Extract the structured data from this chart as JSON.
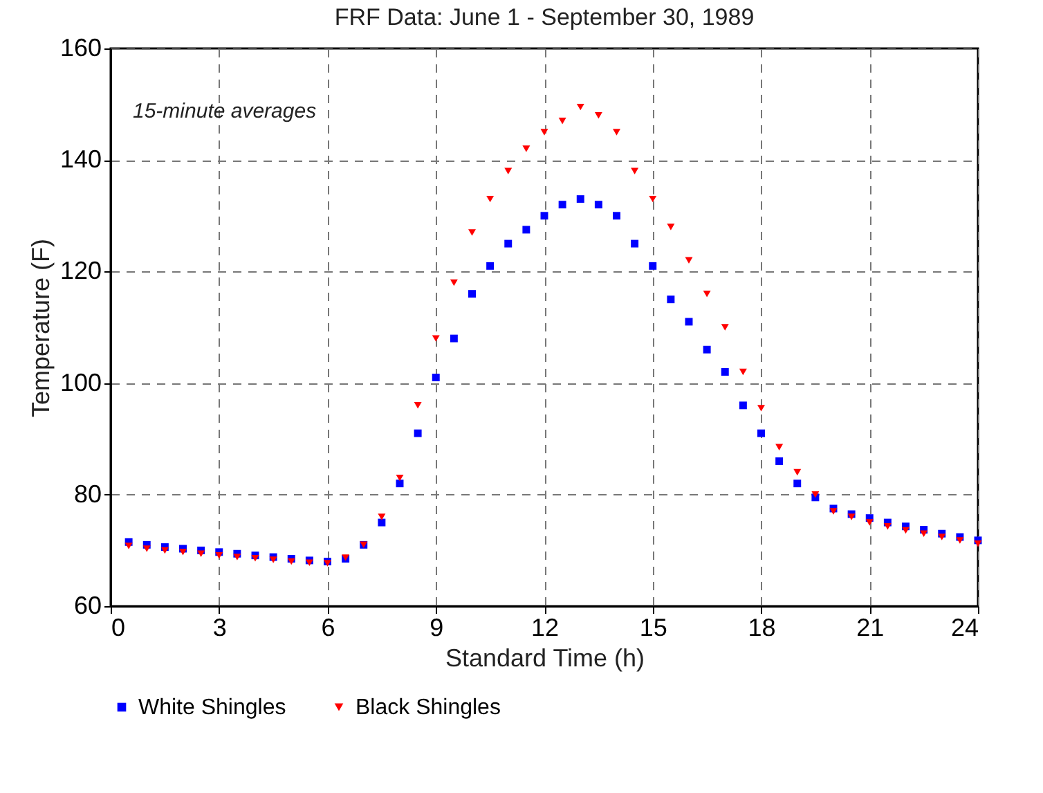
{
  "chart_data": {
    "type": "scatter",
    "title": "FRF Data: June 1 - September 30, 1989",
    "xlabel": "Standard Time (h)",
    "ylabel": "Temperature (F)",
    "annotations": [
      "15-minute averages"
    ],
    "xlim": [
      0,
      24
    ],
    "xticks": [
      0,
      3,
      6,
      9,
      12,
      15,
      18,
      21,
      24
    ],
    "ylim": [
      60,
      160
    ],
    "yticks": [
      60,
      80,
      100,
      120,
      140,
      160
    ],
    "grid": true,
    "legend": "bottom",
    "series": [
      {
        "name": "White Shingles",
        "color": "#0000ff",
        "marker": "square",
        "x": [
          0.5,
          1,
          1.5,
          2,
          2.5,
          3,
          3.5,
          4,
          4.5,
          5,
          5.5,
          6,
          6.5,
          7,
          7.5,
          8,
          8.5,
          9,
          9.5,
          10,
          10.5,
          11,
          11.5,
          12,
          12.5,
          13,
          13.5,
          14,
          14.5,
          15,
          15.5,
          16,
          16.5,
          17,
          17.5,
          18,
          18.5,
          19,
          19.5,
          20,
          20.5,
          21,
          21.5,
          22,
          22.5,
          23,
          23.5,
          24
        ],
        "values": [
          71.5,
          71,
          70.6,
          70.3,
          70,
          69.7,
          69.4,
          69.1,
          68.8,
          68.5,
          68.2,
          68,
          68.5,
          71,
          75,
          82,
          91,
          101,
          108,
          116,
          121,
          125,
          127.5,
          130,
          132,
          133,
          132,
          130,
          125,
          121,
          115,
          111,
          106,
          102,
          96,
          91,
          86,
          82,
          79.5,
          77.5,
          76.5,
          75.8,
          75,
          74.3,
          73.7,
          73,
          72.4,
          71.8
        ]
      },
      {
        "name": "Black Shingles",
        "color": "#ff0000",
        "marker": "triangle",
        "x": [
          0.5,
          1,
          1.5,
          2,
          2.5,
          3,
          3.5,
          4,
          4.5,
          5,
          5.5,
          6,
          6.5,
          7,
          7.5,
          8,
          8.5,
          9,
          9.5,
          10,
          10.5,
          11,
          11.5,
          12,
          12.5,
          13,
          13.5,
          14,
          14.5,
          15,
          15.5,
          16,
          16.5,
          17,
          17.5,
          18,
          18.5,
          19,
          19.5,
          20,
          20.5,
          21,
          21.5,
          22,
          22.5,
          23,
          23.5,
          24
        ],
        "values": [
          70.8,
          70.3,
          70,
          69.7,
          69.4,
          69.1,
          68.8,
          68.6,
          68.3,
          68,
          67.8,
          67.7,
          68.7,
          71,
          76,
          83,
          96,
          108,
          118,
          127,
          133,
          138,
          142,
          145,
          147,
          149.5,
          148,
          145,
          138,
          133,
          128,
          122,
          116,
          110,
          102,
          95.5,
          88.5,
          84,
          80,
          77,
          76,
          75,
          74.3,
          73.6,
          73,
          72.4,
          71.8,
          71.2
        ]
      }
    ]
  }
}
